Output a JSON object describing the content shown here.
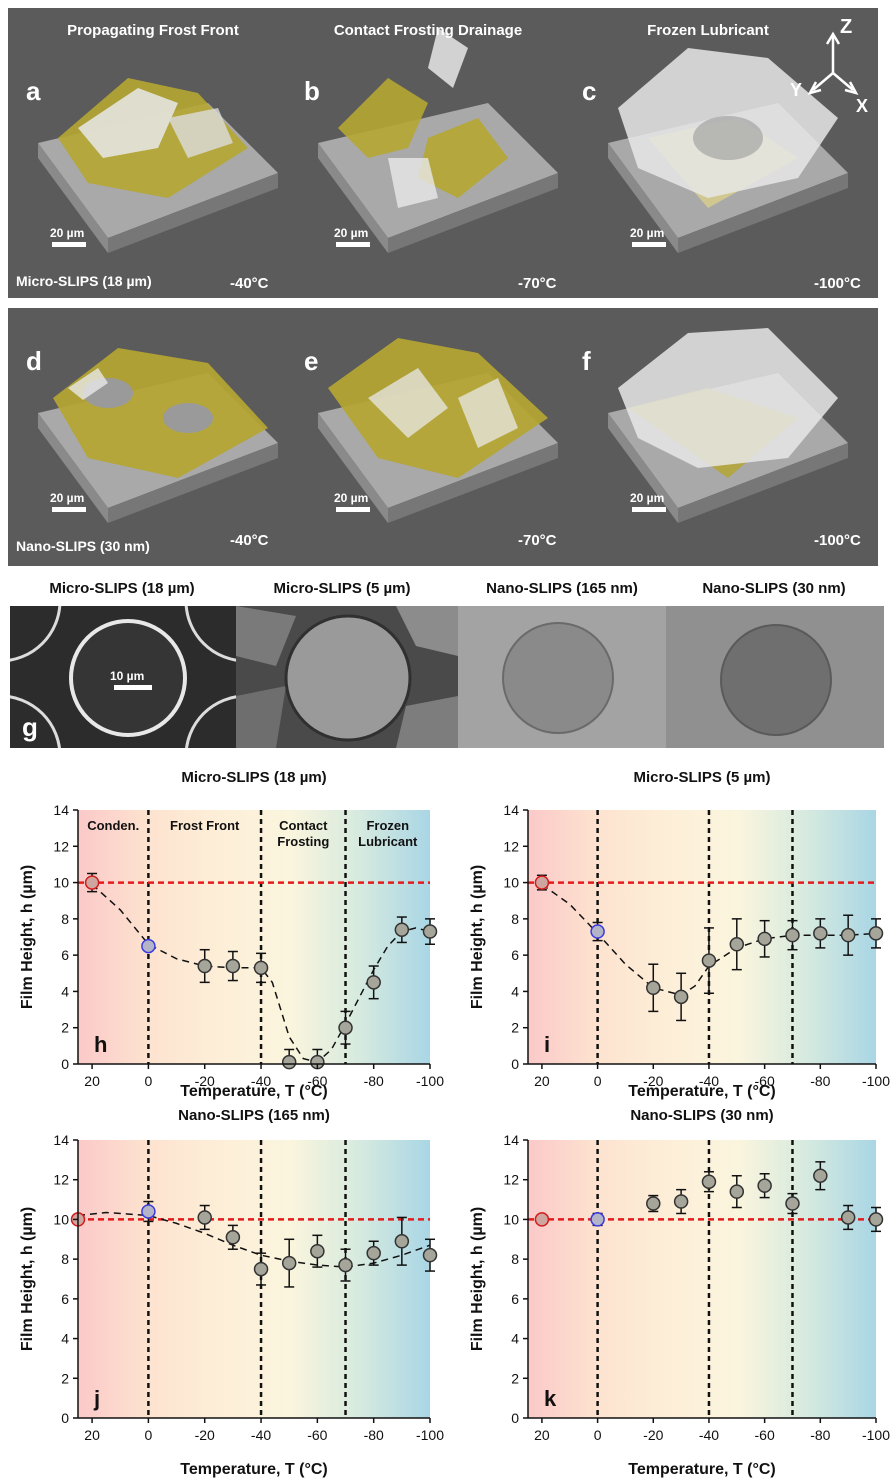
{
  "panel_columns": [
    "Propagating Frost Front",
    "Contact Frosting Drainage",
    "Frozen Lubricant"
  ],
  "axes_labels": {
    "z": "Z",
    "y": "Y",
    "x": "X"
  },
  "row1": {
    "sample": "Micro-SLIPS (18 µm)",
    "panels": [
      {
        "letter": "a",
        "temp": "-40°C",
        "scale": "20 µm"
      },
      {
        "letter": "b",
        "temp": "-70°C",
        "scale": "20 µm"
      },
      {
        "letter": "c",
        "temp": "-100°C",
        "scale": "20 µm"
      }
    ]
  },
  "row2": {
    "sample": "Nano-SLIPS (30 nm)",
    "panels": [
      {
        "letter": "d",
        "temp": "-40°C",
        "scale": "20 µm"
      },
      {
        "letter": "e",
        "temp": "-70°C",
        "scale": "20 µm"
      },
      {
        "letter": "f",
        "temp": "-100°C",
        "scale": "20 µm"
      }
    ]
  },
  "sem": {
    "letter": "g",
    "titles": [
      "Micro-SLIPS (18 µm)",
      "Micro-SLIPS (5 µm)",
      "Nano-SLIPS (165 nm)",
      "Nano-SLIPS (30 nm)"
    ],
    "scale": "10 µm"
  },
  "colors": {
    "reference_line": "#e41a1c",
    "frost": "#b5a632",
    "ice": "#e8e8e8",
    "substrate": "#8a8a8a",
    "panel_bg": "#5b5b5b",
    "cond_band": "#fbc9c9",
    "frozen_band": "#a9d6e5"
  },
  "chart_data": [
    {
      "type": "scatter",
      "letter": "h",
      "title": "Micro-SLIPS (18 µm)",
      "xlabel": "Temperature, T (°C)",
      "ylabel": "Film Height, h (µm)",
      "xlim": [
        25,
        -100
      ],
      "ylim": [
        0,
        14
      ],
      "xticks": [
        20,
        0,
        -20,
        -40,
        -60,
        -80,
        -100
      ],
      "yticks": [
        0,
        2,
        4,
        6,
        8,
        10,
        12,
        14
      ],
      "regions": [
        "Conden.",
        "Frost Front",
        "Contact Frosting",
        "Frozen Lubricant"
      ],
      "dividers": [
        0,
        -40,
        -70
      ],
      "reference": 10,
      "x": [
        20,
        0,
        -20,
        -30,
        -40,
        -50,
        -60,
        -70,
        -80,
        -90,
        -100
      ],
      "y": [
        10,
        6.5,
        5.4,
        5.4,
        5.3,
        0.1,
        0.1,
        2.0,
        4.5,
        7.4,
        7.3
      ],
      "err": [
        0.5,
        0.2,
        0.9,
        0.8,
        0.8,
        0.7,
        0.7,
        0.9,
        0.9,
        0.7,
        0.7
      ],
      "fit": [
        [
          20,
          9.9
        ],
        [
          10,
          8.5
        ],
        [
          0,
          6.6
        ],
        [
          -10,
          5.8
        ],
        [
          -20,
          5.4
        ],
        [
          -30,
          5.3
        ],
        [
          -40,
          5.3
        ],
        [
          -44,
          4.5
        ],
        [
          -50,
          1.5
        ],
        [
          -55,
          0.3
        ],
        [
          -60,
          0.1
        ],
        [
          -65,
          0.8
        ],
        [
          -70,
          2.2
        ],
        [
          -75,
          3.7
        ],
        [
          -80,
          5.2
        ],
        [
          -85,
          6.5
        ],
        [
          -90,
          7.3
        ],
        [
          -95,
          7.5
        ],
        [
          -100,
          7.3
        ]
      ]
    },
    {
      "type": "scatter",
      "letter": "i",
      "title": "Micro-SLIPS (5 µm)",
      "xlabel": "Temperature, T (°C)",
      "ylabel": "Film Height, h (µm)",
      "xlim": [
        25,
        -100
      ],
      "ylim": [
        0,
        14
      ],
      "xticks": [
        20,
        0,
        -20,
        -40,
        -60,
        -80,
        -100
      ],
      "yticks": [
        0,
        2,
        4,
        6,
        8,
        10,
        12,
        14
      ],
      "dividers": [
        0,
        -40,
        -70
      ],
      "reference": 10,
      "x": [
        20,
        0,
        -20,
        -30,
        -40,
        -50,
        -60,
        -70,
        -80,
        -90,
        -100
      ],
      "y": [
        10,
        7.3,
        4.2,
        3.7,
        5.7,
        6.6,
        6.9,
        7.1,
        7.2,
        7.1,
        7.2
      ],
      "err": [
        0.4,
        0.5,
        1.3,
        1.3,
        1.8,
        1.4,
        1.0,
        0.8,
        0.8,
        1.1,
        0.8
      ],
      "fit": [
        [
          20,
          9.9
        ],
        [
          10,
          8.8
        ],
        [
          0,
          7.2
        ],
        [
          -10,
          5.5
        ],
        [
          -20,
          4.2
        ],
        [
          -30,
          3.8
        ],
        [
          -35,
          4.3
        ],
        [
          -40,
          5.4
        ],
        [
          -50,
          6.4
        ],
        [
          -60,
          6.9
        ],
        [
          -70,
          7.1
        ],
        [
          -80,
          7.1
        ],
        [
          -90,
          7.1
        ],
        [
          -100,
          7.2
        ]
      ]
    },
    {
      "type": "scatter",
      "letter": "j",
      "title": "Nano-SLIPS (165 nm)",
      "xlabel": "Temperature, T (°C)",
      "ylabel": "Film Height, h (µm)",
      "xlim": [
        25,
        -100
      ],
      "ylim": [
        0,
        14
      ],
      "xticks": [
        20,
        0,
        -20,
        -40,
        -60,
        -80,
        -100
      ],
      "yticks": [
        0,
        2,
        4,
        6,
        8,
        10,
        12,
        14
      ],
      "dividers": [
        0,
        -40,
        -70
      ],
      "reference": 10,
      "x": [
        25,
        0,
        -20,
        -30,
        -40,
        -50,
        -60,
        -70,
        -80,
        -90,
        -100
      ],
      "y": [
        10,
        10.4,
        10.1,
        9.1,
        7.5,
        7.8,
        8.4,
        7.7,
        8.3,
        8.9,
        8.2
      ],
      "err": [
        0.2,
        0.5,
        0.6,
        0.6,
        0.8,
        1.2,
        0.8,
        0.8,
        0.6,
        1.2,
        0.8
      ],
      "fit": [
        [
          25,
          10.2
        ],
        [
          15,
          10.35
        ],
        [
          0,
          10.2
        ],
        [
          -10,
          9.8
        ],
        [
          -20,
          9.3
        ],
        [
          -30,
          8.7
        ],
        [
          -40,
          8.2
        ],
        [
          -50,
          7.9
        ],
        [
          -60,
          7.7
        ],
        [
          -70,
          7.6
        ],
        [
          -80,
          7.8
        ],
        [
          -90,
          8.2
        ],
        [
          -100,
          8.7
        ]
      ]
    },
    {
      "type": "scatter",
      "letter": "k",
      "title": "Nano-SLIPS (30 nm)",
      "xlabel": "Temperature, T (°C)",
      "ylabel": "Film Height, h (µm)",
      "xlim": [
        25,
        -100
      ],
      "ylim": [
        0,
        14
      ],
      "xticks": [
        20,
        0,
        -20,
        -40,
        -60,
        -80,
        -100
      ],
      "yticks": [
        0,
        2,
        4,
        6,
        8,
        10,
        12,
        14
      ],
      "dividers": [
        0,
        -40,
        -70
      ],
      "reference": 10,
      "x": [
        20,
        0,
        -20,
        -30,
        -40,
        -50,
        -60,
        -70,
        -80,
        -90,
        -100
      ],
      "y": [
        10,
        10,
        10.8,
        10.9,
        11.9,
        11.4,
        11.7,
        10.8,
        12.2,
        10.1,
        10
      ],
      "err": [
        0.1,
        0.3,
        0.4,
        0.6,
        0.5,
        0.8,
        0.6,
        0.5,
        0.7,
        0.6,
        0.6
      ],
      "fit": []
    }
  ]
}
